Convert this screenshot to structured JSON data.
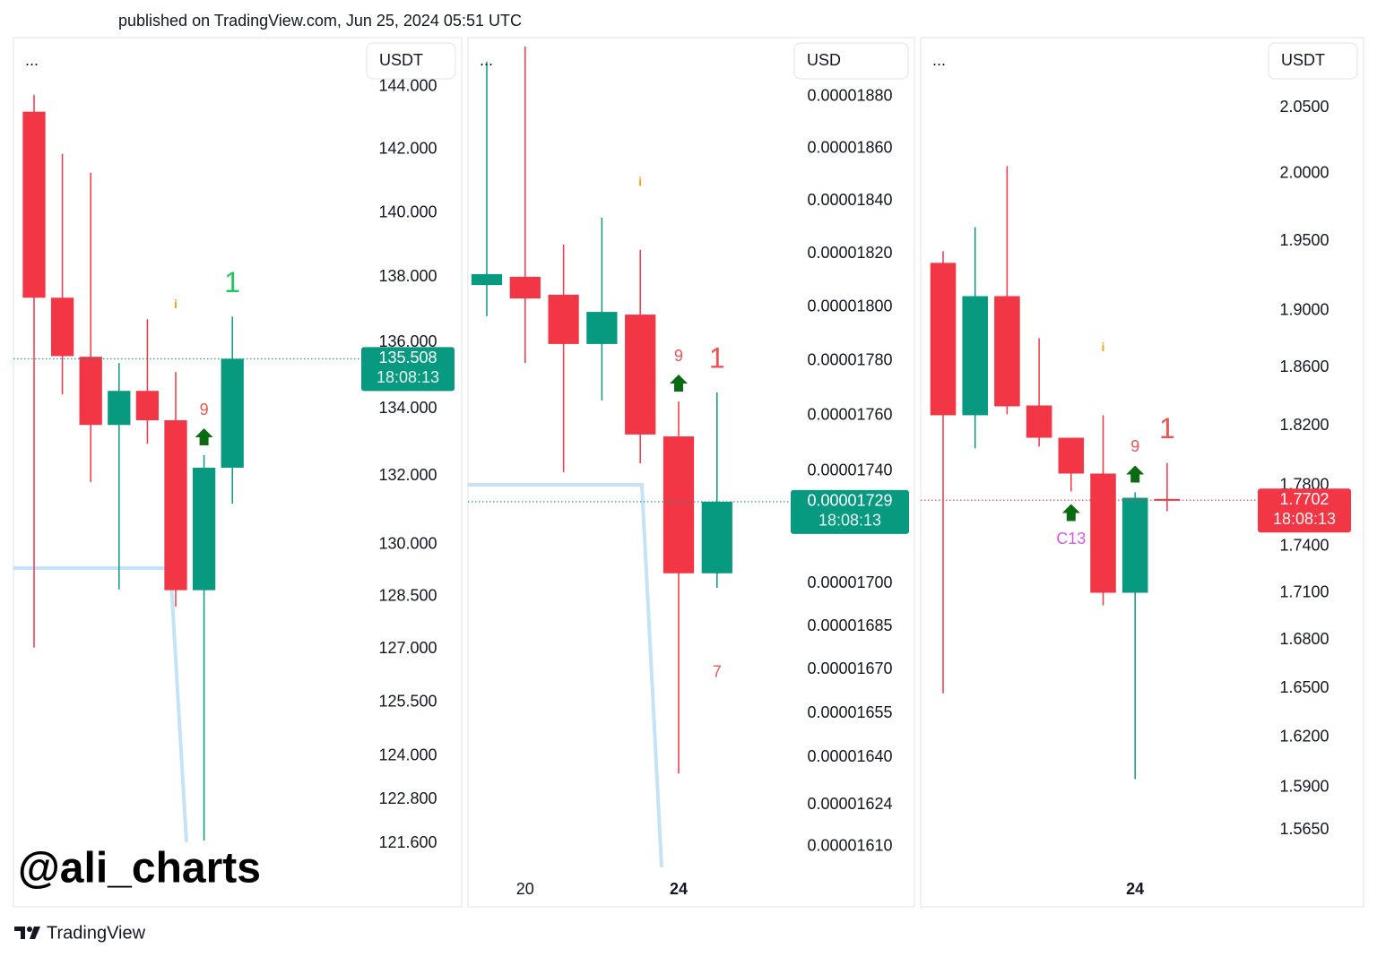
{
  "header": "published on TradingView.com, Jun 25, 2024 05:51 UTC",
  "watermark": "@ali_charts",
  "footer_brand": "TradingView",
  "chart_data": [
    {
      "type": "candlestick",
      "menu": "...",
      "currency": "USDT",
      "log_scale": true,
      "grid": false,
      "up_color": "#089981",
      "down_color": "#f23645",
      "countdown": "18:08:13",
      "ylim": [
        119.89,
        145.59
      ],
      "yticks": [
        {
          "value": 144,
          "label": "144.000"
        },
        {
          "value": 142,
          "label": "142.000"
        },
        {
          "value": 140,
          "label": "140.000"
        },
        {
          "value": 138,
          "label": "138.000"
        },
        {
          "value": 136,
          "label": "136.000"
        },
        {
          "value": 134,
          "label": "134.000"
        },
        {
          "value": 132,
          "label": "132.000"
        },
        {
          "value": 130,
          "label": "130.000"
        },
        {
          "value": 128.5,
          "label": "128.500"
        },
        {
          "value": 127,
          "label": "127.000"
        },
        {
          "value": 125.5,
          "label": "125.500"
        },
        {
          "value": 124,
          "label": "124.000"
        },
        {
          "value": 122.8,
          "label": "122.800"
        },
        {
          "value": 121.6,
          "label": "121.600"
        }
      ],
      "open": [
        143.2,
        137.37,
        135.57,
        133.52,
        134.54,
        133.66,
        128.68,
        132.25
      ],
      "high": [
        143.74,
        141.86,
        141.26,
        135.38,
        136.71,
        135.11,
        132.62,
        136.79
      ],
      "low": [
        127.04,
        134.43,
        131.83,
        128.7,
        132.96,
        128.21,
        121.68,
        131.19
      ],
      "close": [
        137.37,
        135.59,
        133.52,
        134.54,
        133.66,
        128.68,
        132.25,
        135.508
      ],
      "annotations": [
        {
          "text": "i",
          "candle": 5,
          "style": "info",
          "color": "#f0a30a",
          "position": "above",
          "arrow": false
        },
        {
          "text": "9",
          "candle": 6,
          "style": "count",
          "color": "#ef5350",
          "position": "above",
          "arrow": true
        },
        {
          "text": "1",
          "candle": 7,
          "style": "signal",
          "color": "#22c55e",
          "position": "above",
          "arrow": false
        }
      ]
    },
    {
      "type": "candlestick",
      "menu": "...",
      "currency": "USD",
      "log_scale": true,
      "grid": false,
      "up_color": "#089981",
      "down_color": "#f23645",
      "countdown": "18:08:13",
      "ylim": [
        1.5901e-05,
        1.9031e-05
      ],
      "yticks": [
        {
          "value": 1.88e-05,
          "label": "0.00001880"
        },
        {
          "value": 1.86e-05,
          "label": "0.00001860"
        },
        {
          "value": 1.84e-05,
          "label": "0.00001840"
        },
        {
          "value": 1.82e-05,
          "label": "0.00001820"
        },
        {
          "value": 1.8e-05,
          "label": "0.00001800"
        },
        {
          "value": 1.78e-05,
          "label": "0.00001780"
        },
        {
          "value": 1.76e-05,
          "label": "0.00001760"
        },
        {
          "value": 1.74e-05,
          "label": "0.00001740"
        },
        {
          "value": 1.7e-05,
          "label": "0.00001700"
        },
        {
          "value": 1.685e-05,
          "label": "0.00001685"
        },
        {
          "value": 1.67e-05,
          "label": "0.00001670"
        },
        {
          "value": 1.655e-05,
          "label": "0.00001655"
        },
        {
          "value": 1.64e-05,
          "label": "0.00001640"
        },
        {
          "value": 1.624e-05,
          "label": "0.00001624"
        },
        {
          "value": 1.61e-05,
          "label": "0.00001610"
        }
      ],
      "categories": [
        null,
        "20",
        null,
        null,
        null,
        "24",
        null
      ],
      "bold_category_indices": [
        5
      ],
      "open": [
        1.8082e-05,
        1.8113e-05,
        1.8046e-05,
        1.7863e-05,
        1.7972e-05,
        1.7525e-05,
        1.7036e-05
      ],
      "high": [
        1.8937e-05,
        1.8996e-05,
        1.8234e-05,
        1.8336e-05,
        1.8214e-05,
        1.7652e-05,
        1.7685e-05
      ],
      "low": [
        1.7966e-05,
        1.7793e-05,
        1.7396e-05,
        1.7656e-05,
        1.7428e-05,
        1.6346e-05,
        1.6985e-05
      ],
      "close": [
        1.8123e-05,
        1.8032e-05,
        1.7863e-05,
        1.7982e-05,
        1.7532e-05,
        1.7036e-05,
        1.729e-05
      ],
      "annotations": [
        {
          "text": "i",
          "candle": 4,
          "style": "info",
          "color": "#f0a30a",
          "position": "above",
          "arrow": false
        },
        {
          "text": "9",
          "candle": 5,
          "style": "count",
          "color": "#ef5350",
          "position": "above",
          "arrow": true
        },
        {
          "text": "1",
          "candle": 6,
          "style": "signal",
          "color": "#ef5350",
          "position": "above",
          "arrow": false
        },
        {
          "text": "7",
          "candle": 6,
          "style": "count",
          "color": "#ef5350",
          "position": "below",
          "arrow": false
        }
      ]
    },
    {
      "type": "candlestick",
      "menu": "...",
      "currency": "USDT",
      "log_scale": true,
      "grid": false,
      "up_color": "#089981",
      "down_color": "#f23645",
      "countdown": "18:08:13",
      "ylim": [
        1.5206,
        2.1043
      ],
      "yticks": [
        {
          "value": 2.05,
          "label": "2.0500"
        },
        {
          "value": 2,
          "label": "2.0000"
        },
        {
          "value": 1.95,
          "label": "1.9500"
        },
        {
          "value": 1.9,
          "label": "1.9000"
        },
        {
          "value": 1.86,
          "label": "1.8600"
        },
        {
          "value": 1.82,
          "label": "1.8200"
        },
        {
          "value": 1.78,
          "label": "1.7800"
        },
        {
          "value": 1.74,
          "label": "1.7400"
        },
        {
          "value": 1.71,
          "label": "1.7100"
        },
        {
          "value": 1.68,
          "label": "1.6800"
        },
        {
          "value": 1.65,
          "label": "1.6500"
        },
        {
          "value": 1.62,
          "label": "1.6200"
        },
        {
          "value": 1.59,
          "label": "1.5900"
        },
        {
          "value": 1.565,
          "label": "1.5650"
        }
      ],
      "categories": [
        null,
        null,
        null,
        null,
        null,
        null,
        "24",
        null
      ],
      "bold_category_indices": [
        6
      ],
      "open": [
        1.9344,
        1.8273,
        1.9105,
        1.834,
        1.812,
        1.7879,
        1.71,
        1.771
      ],
      "high": [
        1.9428,
        1.9604,
        2.0057,
        1.8807,
        1.812,
        1.8273,
        1.7754,
        1.7951
      ],
      "low": [
        1.6469,
        1.8048,
        1.8279,
        1.806,
        1.776,
        1.702,
        1.5949,
        1.7629
      ],
      "close": [
        1.8273,
        1.9105,
        1.8334,
        1.812,
        1.7879,
        1.71,
        1.7718,
        1.7702
      ],
      "annotations": [
        {
          "text": "i",
          "candle": 5,
          "style": "info",
          "color": "#f0a30a",
          "position": "above",
          "arrow": false
        },
        {
          "text": "9",
          "candle": 6,
          "style": "count",
          "color": "#ef5350",
          "position": "above",
          "arrow": true
        },
        {
          "text": "1",
          "candle": 7,
          "style": "signal",
          "color": "#ef5350",
          "position": "above",
          "arrow": false
        },
        {
          "text": "C13",
          "candle": 4,
          "style": "count",
          "color": "#d65be0",
          "position": "below",
          "arrow": true
        }
      ]
    }
  ]
}
